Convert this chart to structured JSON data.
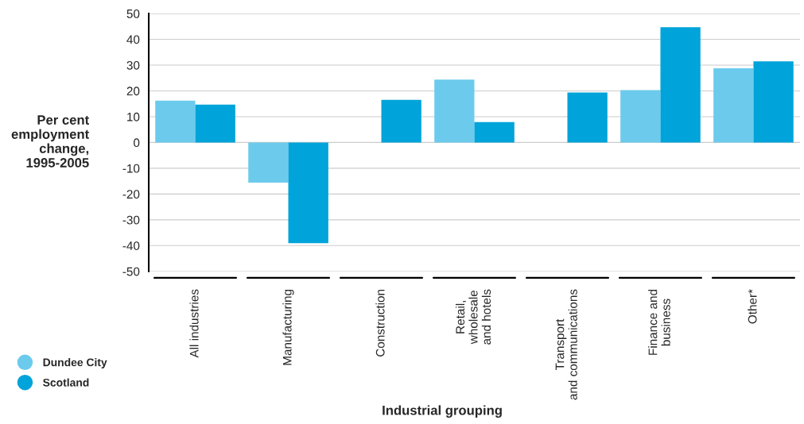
{
  "chart_data": {
    "type": "bar",
    "ylabel": "Per cent\nemployment\nchange,\n1995-2005",
    "xlabel": "Industrial grouping",
    "categories": [
      "All industries",
      "Manufacturing",
      "Construction",
      "Retail,\nwholesale\nand hotels",
      "Transport\nand communications",
      "Finance and\nbusiness",
      "Other*"
    ],
    "series": [
      {
        "name": "Dundee City",
        "color": "#6ccbec",
        "values": [
          16.2,
          -15.6,
          null,
          24.4,
          null,
          20.3,
          28.8
        ]
      },
      {
        "name": "Scotland",
        "color": "#00a3da",
        "values": [
          14.7,
          -39.1,
          16.5,
          7.9,
          19.4,
          44.7,
          31.5
        ]
      }
    ],
    "ylim": [
      -50,
      50
    ],
    "yticks": [
      -50,
      -40,
      -30,
      -20,
      -10,
      0,
      10,
      20,
      30,
      40,
      50
    ],
    "grid": "y",
    "legend": "bottom left"
  }
}
